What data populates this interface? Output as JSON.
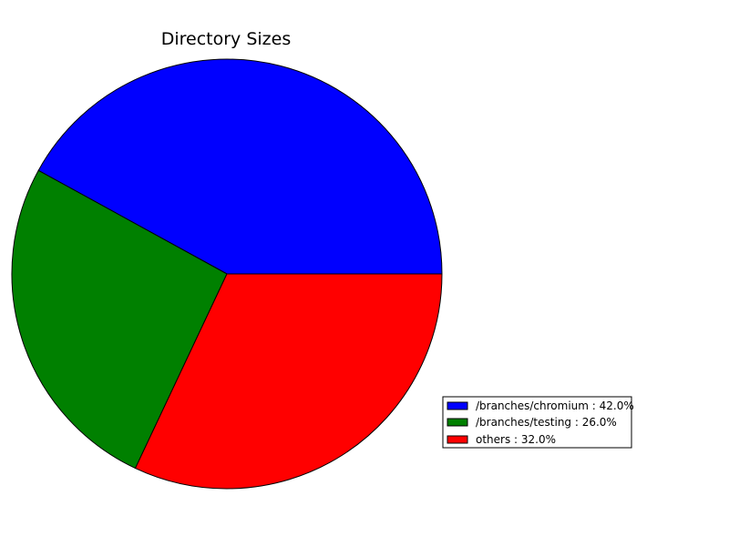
{
  "chart_data": {
    "type": "pie",
    "title": "Directory Sizes",
    "slices": [
      {
        "label": "/branches/chromium",
        "value": 42.0,
        "color": "#0000ff"
      },
      {
        "label": "/branches/testing",
        "value": 26.0,
        "color": "#008000"
      },
      {
        "label": "others",
        "value": 32.0,
        "color": "#ff0000"
      }
    ],
    "legend_entries": [
      "/branches/chromium : 42.0%",
      "/branches/testing : 26.0%",
      "others : 32.0%"
    ],
    "start_angle_deg": 0,
    "direction": "counterclockwise",
    "legend_position": "lower-right"
  }
}
